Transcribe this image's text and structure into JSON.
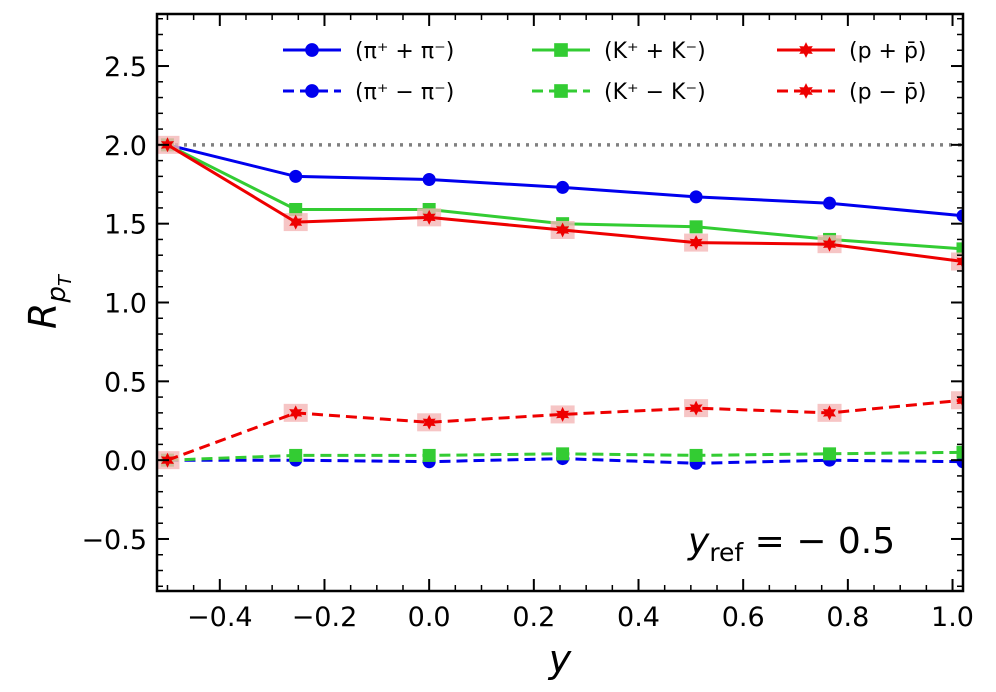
{
  "chart_data": {
    "type": "line",
    "title": "",
    "xlabel": "y",
    "ylabel_main": "R",
    "ylabel_sub": "p",
    "ylabel_subsub": "T",
    "xlim": [
      -0.52,
      1.02
    ],
    "ylim": [
      -0.83,
      2.83
    ],
    "x_ticks": [
      -0.4,
      -0.2,
      0.0,
      0.2,
      0.4,
      0.6,
      0.8,
      1.0
    ],
    "x_tick_labels": [
      "−0.4",
      "−0.2",
      "0.0",
      "0.2",
      "0.4",
      "0.6",
      "0.8",
      "1.0"
    ],
    "y_ticks": [
      -0.5,
      0.0,
      0.5,
      1.0,
      1.5,
      2.0,
      2.5
    ],
    "y_tick_labels": [
      "−0.5",
      "0.0",
      "0.5",
      "1.0",
      "1.5",
      "2.0",
      "2.5"
    ],
    "reference_line": {
      "y": 2.0,
      "style": "dotted",
      "color": "#808080"
    },
    "annotation": {
      "main": "y",
      "sub": "ref",
      "rest": " = − 0.5"
    },
    "legend_position": "top",
    "x": [
      -0.5,
      -0.255,
      0.0,
      0.255,
      0.51,
      0.765,
      1.02
    ],
    "series": [
      {
        "name": "(π⁺ + π⁻)",
        "color": "#0000ee",
        "linestyle": "solid",
        "marker": "circle",
        "values": [
          2.0,
          1.8,
          1.78,
          1.73,
          1.67,
          1.63,
          1.55
        ]
      },
      {
        "name": "(π⁺ − π⁻)",
        "color": "#0000ee",
        "linestyle": "dashed",
        "marker": "circle",
        "values": [
          0.0,
          0.0,
          -0.01,
          0.01,
          -0.02,
          0.0,
          -0.01
        ]
      },
      {
        "name": "(K⁺ + K⁻)",
        "color": "#33cc33",
        "linestyle": "solid",
        "marker": "square",
        "values": [
          2.0,
          1.59,
          1.59,
          1.5,
          1.48,
          1.4,
          1.34
        ]
      },
      {
        "name": "(K⁺ − K⁻)",
        "color": "#33cc33",
        "linestyle": "dashed",
        "marker": "square",
        "values": [
          0.0,
          0.03,
          0.03,
          0.04,
          0.03,
          0.04,
          0.05
        ]
      },
      {
        "name": "(p + p̄)",
        "color": "#ee0000",
        "linestyle": "solid",
        "marker": "star",
        "values": [
          2.0,
          1.51,
          1.54,
          1.46,
          1.38,
          1.37,
          1.26
        ]
      },
      {
        "name": "(p − p̄)",
        "color": "#ee0000",
        "linestyle": "dashed",
        "marker": "star",
        "values": [
          0.0,
          0.3,
          0.24,
          0.29,
          0.33,
          0.3,
          0.38
        ]
      }
    ]
  }
}
